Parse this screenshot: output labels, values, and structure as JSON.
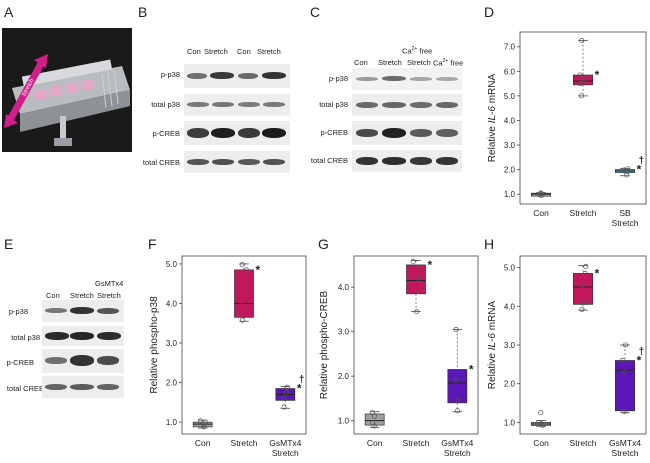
{
  "panels": {
    "A": "A",
    "B": "B",
    "C": "C",
    "D": "D",
    "E": "E",
    "F": "F",
    "G": "G",
    "H": "H"
  },
  "blot_B": {
    "cols": [
      "Con",
      "Stretch",
      "Con",
      "Stretch"
    ],
    "rows": [
      "p-p38",
      "total p38",
      "p-CREB",
      "total CREB"
    ]
  },
  "blot_C": {
    "cols": [
      "Con",
      "Stretch",
      "Ca2+ free Stretch",
      "Ca2+ free"
    ],
    "ca_header": "Ca",
    "ca_sup": "2+",
    "ca_header_rest": " free",
    "col_stretch2": "Stretch",
    "col_ca2": "Ca",
    "col_ca2_sup": "2+",
    "col_ca2_rest": " free",
    "rows": [
      "p-p38",
      "total p38",
      "p-CREB",
      "total CREB"
    ]
  },
  "blot_E": {
    "cols": [
      "Con",
      "Stretch",
      "GsMTx4 Stretch"
    ],
    "col3_line1": "GsMTx4",
    "col3_line2": "Stretch",
    "rows": [
      "p-p38",
      "total p38",
      "p-CREB",
      "total CREB"
    ]
  },
  "photo_arrow_label": "Stretch",
  "colors": {
    "con": "#a0a0a0",
    "stretch": "#c2185b",
    "sb": "#3fa7d6",
    "gsmtx": "#5b16b8"
  },
  "chart_data": [
    {
      "panel": "D",
      "type": "box",
      "ylabel_pre": "Relative ",
      "ylabel_italic": "IL-6",
      "ylabel_post": " mRNA",
      "categories": [
        "Con",
        "Stretch",
        "SB Stretch"
      ],
      "category_lines": [
        [
          "Con"
        ],
        [
          "Stretch"
        ],
        [
          "SB",
          "Stretch"
        ]
      ],
      "ylim": [
        0.6,
        7.6
      ],
      "yticks": [
        "1.0",
        "2.0",
        "3.0",
        "4.0",
        "5.0",
        "6.0",
        "7.0"
      ],
      "boxes": [
        {
          "min": 0.95,
          "q1": 0.96,
          "median": 1.0,
          "q3": 1.04,
          "max": 1.06,
          "points": [
            0.95,
            0.98,
            1.02,
            1.05
          ],
          "color": "#a0a0a0",
          "mark": ""
        },
        {
          "min": 5.0,
          "q1": 5.45,
          "median": 5.6,
          "q3": 5.85,
          "max": 7.25,
          "points": [
            5.0,
            5.5,
            5.65,
            5.85,
            7.25
          ],
          "color": "#c2185b",
          "mark": "*"
        },
        {
          "min": 1.75,
          "q1": 1.88,
          "median": 1.95,
          "q3": 2.0,
          "max": 2.05,
          "points": [
            1.78,
            1.92,
            1.98,
            2.03
          ],
          "color": "#3fa7d6",
          "mark": "*†"
        }
      ]
    },
    {
      "panel": "F",
      "type": "box",
      "ylabel_pre": "Relative phospho-p38",
      "ylabel_italic": "",
      "ylabel_post": "",
      "categories": [
        "Con",
        "Stretch",
        "GsMTx4 Stretch"
      ],
      "category_lines": [
        [
          "Con"
        ],
        [
          "Stretch"
        ],
        [
          "GsMTx4",
          "Stretch"
        ]
      ],
      "ylim": [
        0.7,
        5.2
      ],
      "yticks": [
        "1.0",
        "2.0",
        "3.0",
        "4.0",
        "5.0"
      ],
      "boxes": [
        {
          "min": 0.85,
          "q1": 0.88,
          "median": 0.95,
          "q3": 1.0,
          "max": 1.05,
          "points": [
            0.88,
            0.95,
            1.0,
            1.03
          ],
          "color": "#a0a0a0",
          "mark": ""
        },
        {
          "min": 3.55,
          "q1": 3.65,
          "median": 4.0,
          "q3": 4.85,
          "max": 5.0,
          "points": [
            3.58,
            3.7,
            4.05,
            4.85,
            4.98
          ],
          "color": "#c2185b",
          "mark": "*"
        },
        {
          "min": 1.35,
          "q1": 1.55,
          "median": 1.7,
          "q3": 1.85,
          "max": 1.9,
          "points": [
            1.38,
            1.6,
            1.75,
            1.88
          ],
          "color": "#5b16b8",
          "mark": "*†"
        }
      ]
    },
    {
      "panel": "G",
      "type": "box",
      "ylabel_pre": "Relative phospho-CREB",
      "ylabel_italic": "",
      "ylabel_post": "",
      "categories": [
        "Con",
        "Stretch",
        "GsMTx4 Stretch"
      ],
      "category_lines": [
        [
          "Con"
        ],
        [
          "Stretch"
        ],
        [
          "GsMTx4",
          "Stretch"
        ]
      ],
      "ylim": [
        0.7,
        4.7
      ],
      "yticks": [
        "1.0",
        "2.0",
        "3.0",
        "4.0"
      ],
      "boxes": [
        {
          "min": 0.85,
          "q1": 0.9,
          "median": 1.0,
          "q3": 1.15,
          "max": 1.2,
          "points": [
            0.88,
            0.95,
            1.1,
            1.18
          ],
          "color": "#a0a0a0",
          "mark": ""
        },
        {
          "min": 3.45,
          "q1": 3.85,
          "median": 4.15,
          "q3": 4.5,
          "max": 4.6,
          "points": [
            3.45,
            3.9,
            4.2,
            4.45,
            4.58
          ],
          "color": "#c2185b",
          "mark": "*"
        },
        {
          "min": 1.2,
          "q1": 1.4,
          "median": 1.85,
          "q3": 2.15,
          "max": 3.05,
          "points": [
            1.22,
            1.45,
            1.9,
            3.05
          ],
          "color": "#5b16b8",
          "mark": "*"
        }
      ]
    },
    {
      "panel": "H",
      "type": "box",
      "ylabel_pre": "Relative ",
      "ylabel_italic": "IL-6",
      "ylabel_post": " mRNA",
      "categories": [
        "Con",
        "Stretch",
        "GsMTx4 Stretch"
      ],
      "category_lines": [
        [
          "Con"
        ],
        [
          "Stretch"
        ],
        [
          "GsMTx4",
          "Stretch"
        ]
      ],
      "ylim": [
        0.7,
        5.3
      ],
      "yticks": [
        "1.0",
        "2.0",
        "3.0",
        "4.0",
        "5.0"
      ],
      "boxes": [
        {
          "min": 0.9,
          "q1": 0.93,
          "median": 0.96,
          "q3": 1.0,
          "max": 1.05,
          "points": [
            0.92,
            0.96,
            1.0,
            1.25
          ],
          "color": "#a0a0a0",
          "mark": ""
        },
        {
          "min": 3.9,
          "q1": 4.05,
          "median": 4.5,
          "q3": 4.85,
          "max": 5.05,
          "points": [
            3.92,
            4.1,
            4.55,
            4.85,
            5.03
          ],
          "color": "#c2185b",
          "mark": "*"
        },
        {
          "min": 1.25,
          "q1": 1.3,
          "median": 2.35,
          "q3": 2.6,
          "max": 3.0,
          "points": [
            1.28,
            2.3,
            2.6,
            3.0
          ],
          "color": "#5b16b8",
          "mark": "*†"
        }
      ]
    }
  ]
}
